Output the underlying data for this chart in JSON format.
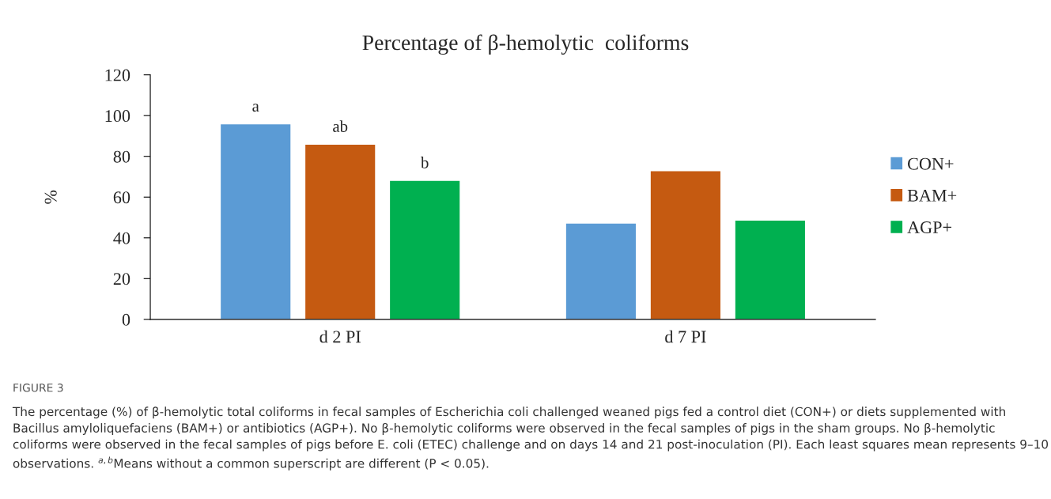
{
  "chart_data": {
    "type": "bar",
    "title": "Percentage of β-hemolytic  coliforms",
    "ylabel": "%",
    "categories": [
      "d 2 PI",
      "d 7 PI"
    ],
    "series": [
      {
        "name": "CON+",
        "color": "#5b9bd5",
        "values": [
          96,
          47.3
        ],
        "value_labels": [
          "a",
          null
        ]
      },
      {
        "name": "BAM+",
        "color": "#c55a11",
        "values": [
          86,
          73
        ],
        "value_labels": [
          "ab",
          null
        ]
      },
      {
        "name": "AGP+",
        "color": "#00b050",
        "values": [
          68.2,
          48.7
        ],
        "value_labels": [
          "b",
          null
        ]
      }
    ],
    "ylim": [
      0,
      120
    ],
    "yticks": [
      0,
      20,
      40,
      60,
      80,
      100,
      120
    ],
    "grid": false,
    "legend": "right",
    "annotations": [
      "FIGURE 3",
      "The percentage (%) of β-hemolytic total coliforms in fecal samples of Escherichia coli challenged weaned pigs fed a control diet (CON+) or diets supplemented with Bacillus amyloliquefaciens (BAM+) or antibiotics (AGP+). No β-hemolytic coliforms were observed in the fecal samples of pigs in the sham groups. No β-hemolytic coliforms were observed in the fecal samples of pigs before E. coli (ETEC) challenge and on days 14 and 21 post-inoculation (PI). Each least squares mean represents 9–10 observations. $^{a,b}$Means without a common superscript are different (P < 0.05)."
    ]
  }
}
